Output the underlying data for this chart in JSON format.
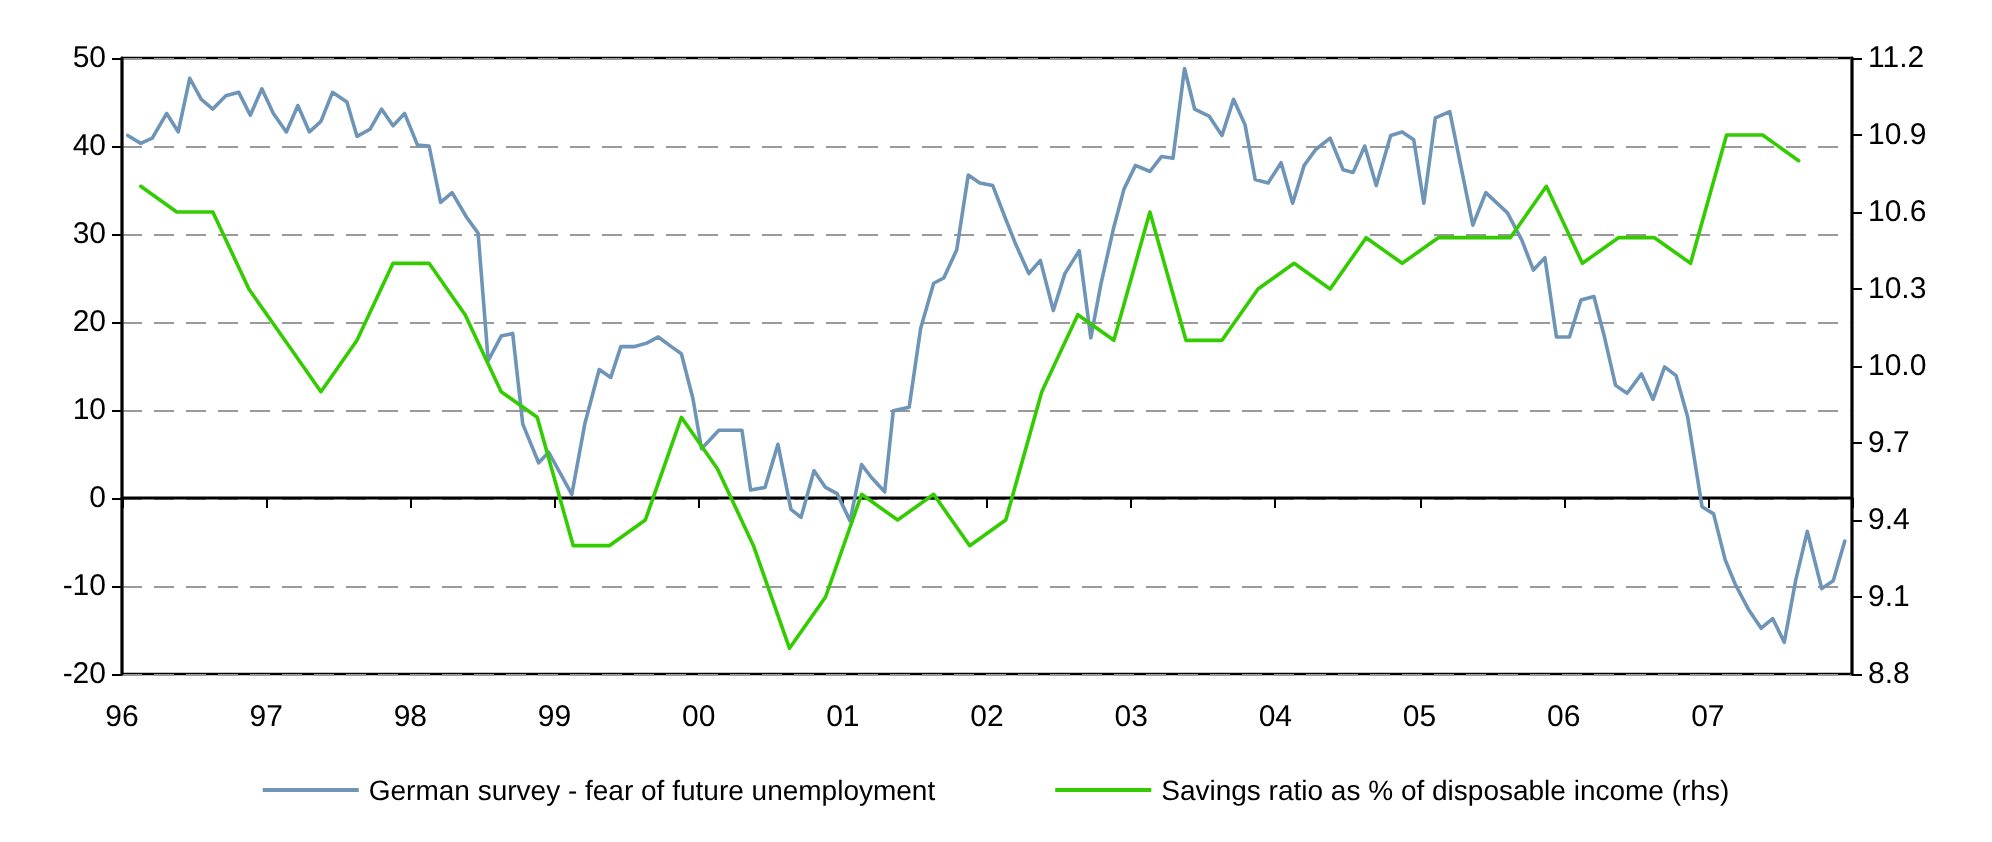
{
  "chart_data": {
    "type": "line",
    "xlim": [
      1996,
      2008
    ],
    "xticks": [
      {
        "value": 1996,
        "label": "96"
      },
      {
        "value": 1997,
        "label": "97"
      },
      {
        "value": 1998,
        "label": "98"
      },
      {
        "value": 1999,
        "label": "99"
      },
      {
        "value": 2000,
        "label": "00"
      },
      {
        "value": 2001,
        "label": "01"
      },
      {
        "value": 2002,
        "label": "02"
      },
      {
        "value": 2003,
        "label": "03"
      },
      {
        "value": 2004,
        "label": "04"
      },
      {
        "value": 2005,
        "label": "05"
      },
      {
        "value": 2006,
        "label": "06"
      },
      {
        "value": 2007,
        "label": "07"
      },
      {
        "value": 2008,
        "label": null
      }
    ],
    "ylim": [
      -20,
      50
    ],
    "yticks": [
      -20,
      -10,
      0,
      10,
      20,
      30,
      40,
      50
    ],
    "y2lim": [
      8.8,
      11.2
    ],
    "y2ticks": [
      8.8,
      9.1,
      9.4,
      9.7,
      {
        "value": 10,
        "label": "10.0"
      },
      10.3,
      10.6,
      10.9,
      11.2
    ],
    "grid": "y",
    "legend": "bottom",
    "line_style": "solid",
    "marker": "none",
    "series": [
      {
        "name": "German survey - fear of future unemployment",
        "color": "#6e95b8",
        "x": [
          1996.04,
          1996.13,
          1996.21,
          1996.31,
          1996.39,
          1996.47,
          1996.55,
          1996.63,
          1996.72,
          1996.81,
          1996.89,
          1996.97,
          1997.05,
          1997.14,
          1997.22,
          1997.3,
          1997.38,
          1997.46,
          1997.56,
          1997.63,
          1997.72,
          1997.8,
          1997.88,
          1997.96,
          1998.05,
          1998.13,
          1998.21,
          1998.29,
          1998.39,
          1998.47,
          1998.54,
          1998.63,
          1998.71,
          1998.78,
          1998.89,
          1998.96,
          1999.12,
          1999.21,
          1999.31,
          1999.39,
          1999.46,
          1999.55,
          1999.64,
          1999.72,
          1999.81,
          1999.88,
          1999.96,
          2000.02,
          2000.14,
          2000.3,
          2000.36,
          2000.46,
          2000.55,
          2000.64,
          2000.71,
          2000.8,
          2000.88,
          2000.96,
          2001.05,
          2001.13,
          2001.2,
          2001.29,
          2001.35,
          2001.46,
          2001.54,
          2001.63,
          2001.7,
          2001.79,
          2001.87,
          2001.95,
          2002.04,
          2002.12,
          2002.2,
          2002.29,
          2002.37,
          2002.46,
          2002.54,
          2002.64,
          2002.72,
          2002.79,
          2002.88,
          2002.95,
          2003.03,
          2003.13,
          2003.21,
          2003.29,
          2003.37,
          2003.44,
          2003.54,
          2003.63,
          2003.71,
          2003.79,
          2003.86,
          2003.95,
          2004.04,
          2004.12,
          2004.2,
          2004.28,
          2004.38,
          2004.47,
          2004.54,
          2004.62,
          2004.7,
          2004.8,
          2004.88,
          2004.96,
          2005.03,
          2005.11,
          2005.21,
          2005.37,
          2005.46,
          2005.61,
          2005.71,
          2005.79,
          2005.87,
          2005.95,
          2006.04,
          2006.12,
          2006.21,
          2006.28,
          2006.36,
          2006.44,
          2006.54,
          2006.62,
          2006.7,
          2006.78,
          2006.86,
          2006.96,
          2007.04,
          2007.12,
          2007.19,
          2007.28,
          2007.37,
          2007.45,
          2007.53,
          2007.61,
          2007.69,
          2007.79,
          2007.87,
          2007.95
        ],
        "values": [
          41.2,
          40.3,
          40.9,
          43.7,
          41.6,
          47.7,
          45.3,
          44.2,
          45.7,
          46.1,
          43.5,
          46.5,
          43.7,
          41.6,
          44.6,
          41.6,
          42.8,
          46.1,
          45.0,
          41.1,
          41.9,
          44.2,
          42.3,
          43.7,
          40.1,
          40.0,
          33.6,
          34.7,
          31.9,
          30.1,
          15.6,
          18.4,
          18.7,
          8.4,
          4.0,
          5.2,
          0.4,
          8.4,
          14.6,
          13.7,
          17.2,
          17.2,
          17.6,
          18.3,
          17.2,
          16.4,
          11.3,
          5.6,
          7.7,
          7.7,
          0.9,
          1.2,
          6.1,
          -1.3,
          -2.2,
          3.1,
          1.2,
          0.5,
          -2.6,
          3.8,
          2.3,
          0.7,
          9.9,
          10.3,
          19.3,
          24.4,
          25.0,
          28.2,
          36.7,
          35.8,
          35.5,
          32.1,
          28.8,
          25.5,
          27.0,
          21.3,
          25.5,
          28.1,
          18.2,
          24.3,
          30.8,
          35.1,
          37.8,
          37.1,
          38.8,
          38.6,
          48.8,
          44.2,
          43.4,
          41.2,
          45.3,
          42.4,
          36.2,
          35.8,
          38.1,
          33.5,
          37.8,
          39.6,
          40.9,
          37.3,
          37.0,
          40.0,
          35.5,
          41.2,
          41.6,
          40.7,
          33.5,
          43.2,
          43.9,
          31.0,
          34.7,
          32.4,
          29.3,
          25.9,
          27.3,
          18.3,
          18.3,
          22.5,
          22.9,
          18.5,
          12.8,
          11.9,
          14.1,
          11.2,
          14.9,
          13.9,
          9.2,
          -1.0,
          -1.8,
          -7.0,
          -9.8,
          -12.6,
          -14.8,
          -13.7,
          -16.4,
          -9.3,
          -3.8,
          -10.3,
          -9.4,
          -4.9
        ]
      },
      {
        "name": "Savings ratio as % of disposable income (rhs)",
        "color": "#33cc00",
        "axis": "y2",
        "x": [
          1996.13,
          1996.38,
          1996.63,
          1996.88,
          1997.13,
          1997.38,
          1997.63,
          1997.88,
          1998.13,
          1998.38,
          1998.63,
          1998.88,
          1999.13,
          1999.38,
          1999.63,
          1999.88,
          2000.13,
          2000.38,
          2000.63,
          2000.88,
          2001.13,
          2001.38,
          2001.63,
          2001.88,
          2002.13,
          2002.38,
          2002.63,
          2002.88,
          2003.13,
          2003.38,
          2003.63,
          2003.88,
          2004.13,
          2004.38,
          2004.63,
          2004.88,
          2005.13,
          2005.38,
          2005.63,
          2005.88,
          2006.13,
          2006.38,
          2006.63,
          2006.88,
          2007.13,
          2007.38,
          2007.63
        ],
        "values": [
          10.7,
          10.6,
          10.6,
          10.3,
          10.1,
          9.9,
          10.1,
          10.4,
          10.4,
          10.2,
          9.9,
          9.8,
          9.3,
          9.3,
          9.4,
          9.8,
          9.6,
          9.3,
          8.9,
          9.1,
          9.5,
          9.4,
          9.5,
          9.3,
          9.4,
          9.9,
          10.2,
          10.1,
          10.6,
          10.1,
          10.1,
          10.3,
          10.4,
          10.3,
          10.5,
          10.4,
          10.5,
          10.5,
          10.5,
          10.7,
          10.4,
          10.5,
          10.5,
          10.4,
          10.9,
          10.9,
          10.8
        ]
      }
    ]
  }
}
